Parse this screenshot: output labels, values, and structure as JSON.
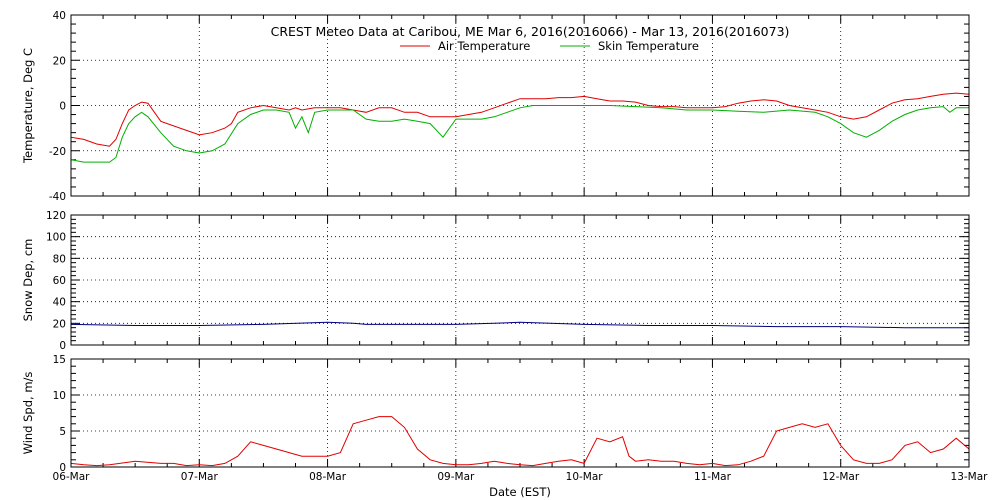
{
  "colors": {
    "air": "#e00000",
    "skin": "#00b000",
    "snow": "#000080",
    "wind": "#e00000"
  },
  "chart_data": {
    "title": "CREST Meteo Data at Caribou, ME   Mar  6, 2016(2016066) - Mar 13, 2016(2016073)",
    "xlabel": "Date (EST)",
    "x_tick_labels": [
      "06-Mar",
      "07-Mar",
      "08-Mar",
      "09-Mar",
      "10-Mar",
      "11-Mar",
      "12-Mar",
      "13-Mar"
    ],
    "xlim_days": [
      0,
      7
    ],
    "panels": [
      {
        "type": "line",
        "ylabel": "Temperature, Deg C",
        "ylim": [
          -40,
          40
        ],
        "yticks": [
          -40,
          -20,
          0,
          20,
          40
        ],
        "grid": true,
        "legend": "top-center",
        "series": [
          {
            "name": "Air Temperature",
            "color": "#e00000",
            "x": [
              0,
              0.1,
              0.2,
              0.3,
              0.35,
              0.4,
              0.45,
              0.5,
              0.55,
              0.6,
              0.65,
              0.7,
              0.8,
              0.9,
              1.0,
              1.1,
              1.2,
              1.25,
              1.3,
              1.4,
              1.5,
              1.6,
              1.7,
              1.75,
              1.8,
              1.9,
              2.0,
              2.1,
              2.2,
              2.3,
              2.4,
              2.5,
              2.6,
              2.7,
              2.8,
              2.9,
              3.0,
              3.1,
              3.2,
              3.3,
              3.4,
              3.5,
              3.6,
              3.7,
              3.8,
              3.9,
              4.0,
              4.1,
              4.2,
              4.3,
              4.4,
              4.5,
              4.6,
              4.7,
              4.8,
              4.9,
              5.0,
              5.1,
              5.2,
              5.3,
              5.4,
              5.5,
              5.6,
              5.7,
              5.8,
              5.9,
              6.0,
              6.1,
              6.2,
              6.3,
              6.4,
              6.5,
              6.6,
              6.7,
              6.8,
              6.9,
              7.0
            ],
            "y": [
              -14,
              -15,
              -17,
              -18,
              -15,
              -8,
              -2,
              0,
              1.5,
              1,
              -3,
              -7,
              -9,
              -11,
              -13,
              -12,
              -10,
              -8,
              -3,
              -1,
              0,
              -1,
              -2,
              -1,
              -2,
              -1,
              -1,
              -1,
              -2,
              -3,
              -1,
              -1,
              -3,
              -3,
              -5,
              -5,
              -5,
              -4,
              -3,
              -1,
              1,
              3,
              3,
              3,
              3.5,
              3.5,
              4,
              3,
              2,
              2,
              1.5,
              0,
              -0.5,
              -0.5,
              -1,
              -1,
              -1,
              -0.5,
              1,
              2,
              2.5,
              2,
              0,
              -1,
              -2,
              -3,
              -5,
              -6,
              -5,
              -2,
              1,
              2.5,
              3,
              4,
              5,
              5.5,
              5
            ]
          },
          {
            "name": "Skin Temperature",
            "color": "#00b000",
            "x": [
              0,
              0.1,
              0.2,
              0.3,
              0.35,
              0.4,
              0.45,
              0.5,
              0.55,
              0.6,
              0.7,
              0.8,
              0.9,
              1.0,
              1.1,
              1.2,
              1.3,
              1.4,
              1.5,
              1.6,
              1.7,
              1.75,
              1.8,
              1.85,
              1.9,
              2.0,
              2.1,
              2.2,
              2.3,
              2.4,
              2.5,
              2.6,
              2.7,
              2.8,
              2.9,
              3.0,
              3.1,
              3.2,
              3.3,
              3.4,
              3.5,
              3.6,
              3.7,
              3.8,
              3.9,
              4.0,
              4.2,
              4.4,
              4.6,
              4.8,
              5.0,
              5.2,
              5.4,
              5.6,
              5.8,
              5.9,
              6.0,
              6.1,
              6.2,
              6.3,
              6.4,
              6.5,
              6.6,
              6.7,
              6.8,
              6.85,
              6.9,
              7.0
            ],
            "y": [
              -24,
              -25,
              -25,
              -25,
              -23,
              -14,
              -8,
              -5,
              -3,
              -5,
              -12,
              -18,
              -20,
              -21,
              -20,
              -17,
              -8,
              -4,
              -2,
              -2,
              -3,
              -10,
              -5,
              -12,
              -3,
              -2,
              -2,
              -2,
              -6,
              -7,
              -7,
              -6,
              -7,
              -8,
              -14,
              -6,
              -6,
              -6,
              -5,
              -3,
              -1,
              0,
              0,
              0,
              0,
              0,
              0,
              -0.5,
              -1,
              -2,
              -2,
              -2.5,
              -3,
              -2,
              -3,
              -5,
              -8,
              -12,
              -14,
              -11,
              -7,
              -4,
              -2,
              -1,
              -0.5,
              -3,
              -1,
              -1
            ]
          }
        ]
      },
      {
        "type": "line",
        "ylabel": "Snow Dep, cm",
        "ylim": [
          0,
          120
        ],
        "yticks": [
          0,
          20,
          40,
          60,
          80,
          100,
          120
        ],
        "grid": true,
        "series": [
          {
            "color": "#000080",
            "x": [
              0,
              0.5,
              1.0,
              1.5,
              2.0,
              2.2,
              2.3,
              2.5,
              3.0,
              3.3,
              3.5,
              4.0,
              4.5,
              5.0,
              5.5,
              6.0,
              6.5,
              7.0
            ],
            "y": [
              19,
              18,
              18,
              19,
              21,
              20,
              19,
              19,
              19,
              20,
              21,
              19,
              18,
              18,
              17,
              17,
              16,
              16
            ]
          }
        ]
      },
      {
        "type": "line",
        "ylabel": "Wind Spd, m/s",
        "ylim": [
          0,
          15
        ],
        "yticks": [
          0,
          5,
          10,
          15
        ],
        "grid": true,
        "series": [
          {
            "color": "#e00000",
            "x": [
              0,
              0.1,
              0.2,
              0.3,
              0.5,
              0.7,
              0.8,
              0.9,
              1.0,
              1.1,
              1.2,
              1.3,
              1.4,
              1.5,
              1.6,
              1.7,
              1.8,
              1.9,
              2.0,
              2.1,
              2.2,
              2.3,
              2.4,
              2.5,
              2.6,
              2.65,
              2.7,
              2.8,
              2.9,
              3.0,
              3.1,
              3.2,
              3.3,
              3.4,
              3.5,
              3.6,
              3.7,
              3.8,
              3.9,
              4.0,
              4.1,
              4.2,
              4.3,
              4.35,
              4.4,
              4.5,
              4.6,
              4.7,
              4.8,
              4.9,
              5.0,
              5.1,
              5.2,
              5.3,
              5.4,
              5.5,
              5.6,
              5.7,
              5.8,
              5.9,
              6.0,
              6.1,
              6.2,
              6.3,
              6.4,
              6.5,
              6.6,
              6.7,
              6.8,
              6.9,
              7.0
            ],
            "y": [
              0.5,
              0.3,
              0.2,
              0.3,
              0.8,
              0.5,
              0.5,
              0.2,
              0.3,
              0.2,
              0.5,
              1.5,
              3.5,
              3.0,
              2.5,
              2.0,
              1.5,
              1.5,
              1.5,
              2.0,
              6.0,
              6.5,
              7.0,
              7.0,
              5.5,
              4.0,
              2.5,
              1.0,
              0.5,
              0.3,
              0.3,
              0.5,
              0.8,
              0.5,
              0.3,
              0.2,
              0.5,
              0.8,
              1.0,
              0.5,
              4.0,
              3.5,
              4.2,
              1.5,
              0.8,
              1.0,
              0.8,
              0.8,
              0.5,
              0.3,
              0.5,
              0.2,
              0.3,
              0.8,
              1.5,
              5.0,
              5.5,
              6.0,
              5.5,
              6.0,
              3.0,
              1.0,
              0.5,
              0.5,
              1.0,
              3.0,
              3.5,
              2.0,
              2.5,
              4.0,
              2.5
            ]
          }
        ]
      }
    ]
  }
}
